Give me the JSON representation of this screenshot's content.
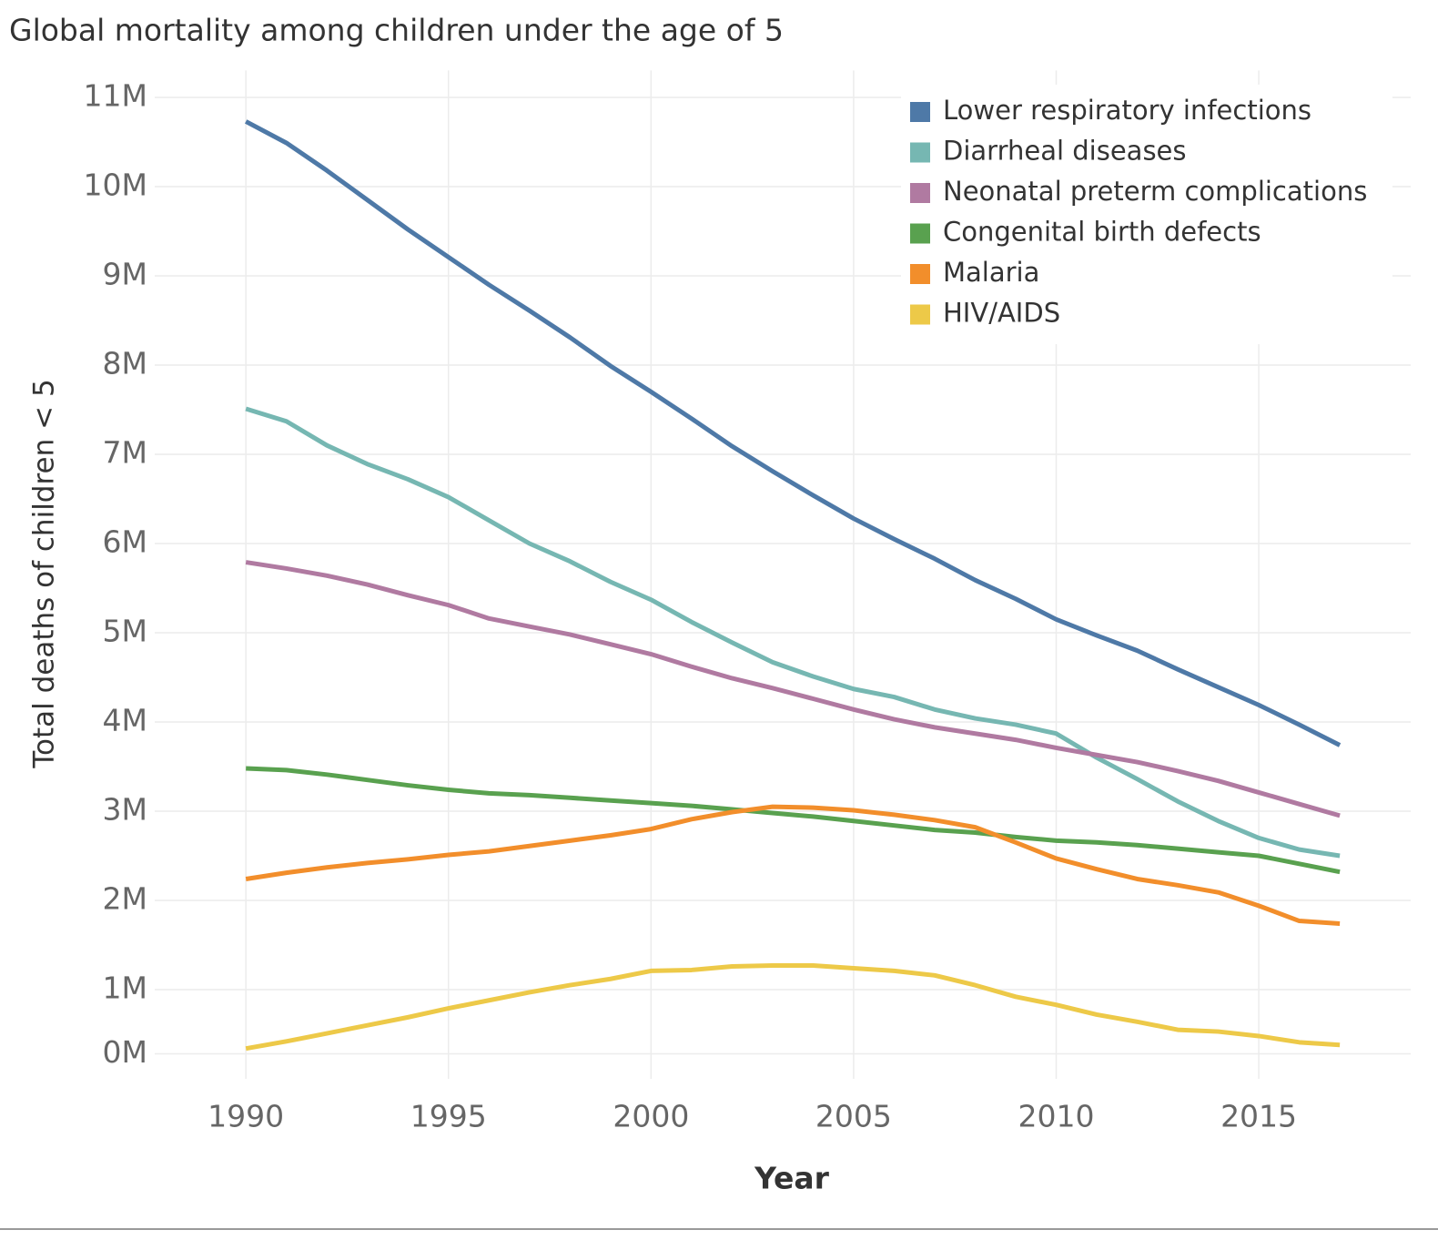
{
  "chart_data": {
    "type": "line",
    "title": "Global mortality among children under the age of 5",
    "x_label": "Year",
    "y_label": "Total deaths of children < 5",
    "x": [
      1990,
      1991,
      1992,
      1993,
      1994,
      1995,
      1996,
      1997,
      1998,
      1999,
      2000,
      2001,
      2002,
      2003,
      2004,
      2005,
      2006,
      2007,
      2008,
      2009,
      2010,
      2011,
      2012,
      2013,
      2014,
      2015,
      2016,
      2017
    ],
    "series": [
      {
        "name": "Lower respiratory infections",
        "color": "#4e79a7",
        "values": [
          10.73,
          10.49,
          10.18,
          9.85,
          9.52,
          9.21,
          8.9,
          8.61,
          8.31,
          7.99,
          7.7,
          7.4,
          7.09,
          6.81,
          6.54,
          6.28,
          6.05,
          5.83,
          5.59,
          5.38,
          5.15,
          4.97,
          4.8,
          4.59,
          4.39,
          4.19,
          3.97,
          3.74
        ]
      },
      {
        "name": "Diarrheal diseases",
        "color": "#76b7b2",
        "values": [
          7.51,
          7.37,
          7.1,
          6.89,
          6.72,
          6.52,
          6.26,
          6.0,
          5.8,
          5.57,
          5.37,
          5.12,
          4.89,
          4.67,
          4.51,
          4.37,
          4.28,
          4.14,
          4.04,
          3.97,
          3.87,
          3.6,
          3.36,
          3.11,
          2.89,
          2.7,
          2.57,
          2.5
        ]
      },
      {
        "name": "Neonatal preterm complications",
        "color": "#b07aa1",
        "values": [
          5.79,
          5.72,
          5.64,
          5.54,
          5.42,
          5.31,
          5.16,
          5.07,
          4.98,
          4.87,
          4.76,
          4.62,
          4.49,
          4.38,
          4.26,
          4.14,
          4.03,
          3.94,
          3.87,
          3.8,
          3.71,
          3.63,
          3.55,
          3.45,
          3.34,
          3.21,
          3.08,
          2.95
        ]
      },
      {
        "name": "Congenital birth defects",
        "color": "#59a14f",
        "values": [
          3.48,
          3.46,
          3.41,
          3.35,
          3.29,
          3.24,
          3.2,
          3.18,
          3.15,
          3.12,
          3.09,
          3.06,
          3.02,
          2.98,
          2.94,
          2.89,
          2.84,
          2.79,
          2.76,
          2.71,
          2.67,
          2.65,
          2.62,
          2.58,
          2.54,
          2.5,
          2.41,
          2.32
        ]
      },
      {
        "name": "Malaria",
        "color": "#f28e2b",
        "values": [
          2.24,
          2.31,
          2.37,
          2.42,
          2.46,
          2.51,
          2.55,
          2.61,
          2.67,
          2.73,
          2.8,
          2.91,
          2.99,
          3.05,
          3.04,
          3.01,
          2.96,
          2.9,
          2.82,
          2.65,
          2.47,
          2.35,
          2.24,
          2.17,
          2.09,
          1.94,
          1.77,
          1.74
        ]
      },
      {
        "name": "HIV/AIDS",
        "color": "#edc948",
        "values": [
          0.34,
          0.42,
          0.51,
          0.6,
          0.69,
          0.79,
          0.88,
          0.97,
          1.05,
          1.12,
          1.21,
          1.22,
          1.26,
          1.27,
          1.27,
          1.24,
          1.21,
          1.16,
          1.05,
          0.92,
          0.83,
          0.72,
          0.64,
          0.55,
          0.53,
          0.48,
          0.41,
          0.38
        ]
      }
    ],
    "xlim": [
      1987.75,
      2018.75
    ],
    "xticks": [
      1990,
      1995,
      2000,
      2005,
      2010,
      2015
    ],
    "ylim": [
      0,
      11.2
    ],
    "yticks": [
      {
        "value": 0.28,
        "label": "0M"
      },
      {
        "value": 1,
        "label": "1M"
      },
      {
        "value": 2,
        "label": "2M"
      },
      {
        "value": 3,
        "label": "3M"
      },
      {
        "value": 4,
        "label": "4M"
      },
      {
        "value": 5,
        "label": "5M"
      },
      {
        "value": 6,
        "label": "6M"
      },
      {
        "value": 7,
        "label": "7M"
      },
      {
        "value": 8,
        "label": "8M"
      },
      {
        "value": 9,
        "label": "9M"
      },
      {
        "value": 10,
        "label": "10M"
      },
      {
        "value": 11,
        "label": "11M"
      }
    ],
    "grid": true,
    "legend": "top-right"
  }
}
